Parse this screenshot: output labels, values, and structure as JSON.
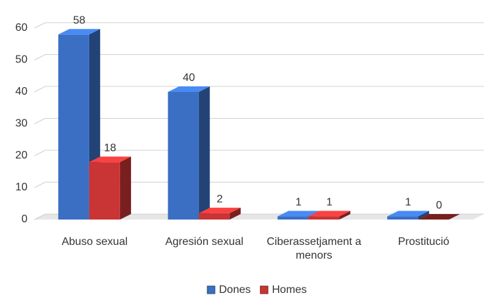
{
  "chart_data": {
    "type": "bar3d",
    "categories": [
      "Abuso sexual",
      "Agresión sexual",
      "Ciberassetjament a menors",
      "Prostitució"
    ],
    "series": [
      {
        "name": "Dones",
        "color": "#3a6fc4",
        "values": [
          58,
          40,
          1,
          1
        ]
      },
      {
        "name": "Homes",
        "color": "#c93434",
        "values": [
          18,
          2,
          1,
          0
        ]
      }
    ],
    "ylim": [
      0,
      60
    ],
    "yticks": [
      0,
      10,
      20,
      30,
      40,
      50,
      60
    ],
    "grid": true,
    "legend": "bottom"
  }
}
